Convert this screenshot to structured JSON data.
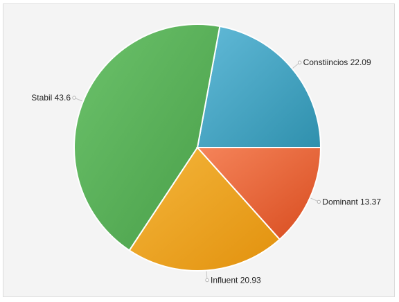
{
  "chart_data": {
    "type": "pie",
    "title": "",
    "start_angle_deg": 0,
    "direction": "counterclockwise",
    "slices": [
      {
        "label": "Constiincios",
        "value": 22.09,
        "color_light": "#62bad8",
        "color_dark": "#2f90ad",
        "label_text": "Constiincios 22.09"
      },
      {
        "label": "Stabil",
        "value": 43.6,
        "color_light": "#6cc26b",
        "color_dark": "#489e48",
        "label_text": "Stabil 43.6"
      },
      {
        "label": "Influent",
        "value": 20.93,
        "color_light": "#f4b63c",
        "color_dark": "#e2910d",
        "label_text": "Influent 20.93"
      },
      {
        "label": "Dominant",
        "value": 13.37,
        "color_light": "#f5845a",
        "color_dark": "#d84c1f",
        "label_text": "Dominant 13.37"
      }
    ]
  }
}
